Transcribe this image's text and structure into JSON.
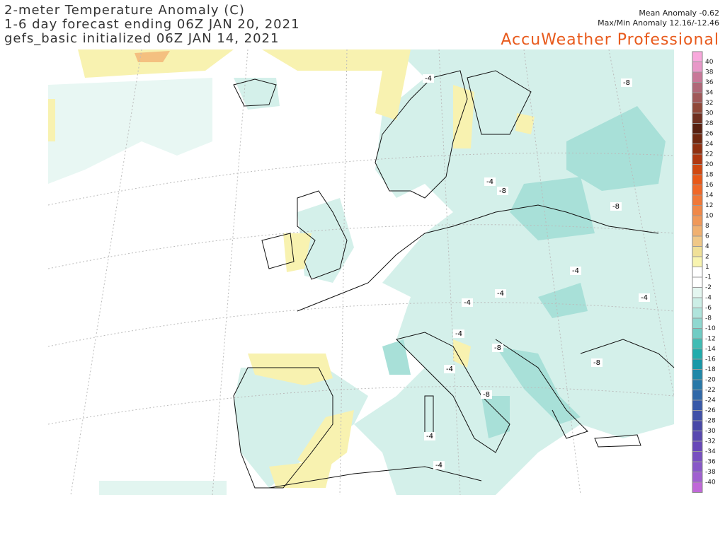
{
  "header": {
    "title": "2-meter Temperature Anomaly (C)",
    "line2": "1-6 day forecast ending 06Z JAN 20, 2021",
    "line3": "gefs_basic initialized 06Z JAN 14, 2021",
    "mean": "Mean Anomaly -0.62",
    "maxmin": "Max/Min Anomaly 12.16/-12.46",
    "brand": "AccuWeather Professional"
  },
  "colorbar": {
    "levels": [
      40,
      38,
      36,
      34,
      32,
      30,
      28,
      26,
      24,
      22,
      20,
      18,
      16,
      14,
      12,
      10,
      8,
      6,
      4,
      2,
      1,
      -1,
      -2,
      -4,
      -6,
      -8,
      -10,
      -12,
      -14,
      -16,
      -18,
      -20,
      -22,
      -24,
      -26,
      -28,
      -30,
      -32,
      -34,
      -36,
      -38,
      -40
    ],
    "colors": [
      "#f8a8dc",
      "#e898c8",
      "#c87898",
      "#b06878",
      "#a05858",
      "#904838",
      "#703020",
      "#582010",
      "#702810",
      "#903010",
      "#b03810",
      "#d04810",
      "#e85818",
      "#f06828",
      "#f07838",
      "#f08848",
      "#f09858",
      "#f0b070",
      "#f0c888",
      "#f0e098",
      "#f8f4b0",
      "#ffffff",
      "#ffffff",
      "#e4f6f0",
      "#cceee6",
      "#b0e4dc",
      "#90d8d0",
      "#70ccc4",
      "#40bcb4",
      "#20acac",
      "#1898a8",
      "#2088a8",
      "#2878a8",
      "#3068a8",
      "#3858a8",
      "#4050a8",
      "#4848a8",
      "#5848b0",
      "#6848b8",
      "#7850c0",
      "#8858c8",
      "#a060d0",
      "#c068d8"
    ]
  },
  "contours": {
    "labels": [
      -4,
      -8,
      -4,
      -8,
      -8,
      -4,
      -4,
      -4,
      -4,
      -4,
      -8,
      -4,
      -8,
      -8,
      -4,
      -4
    ]
  }
}
